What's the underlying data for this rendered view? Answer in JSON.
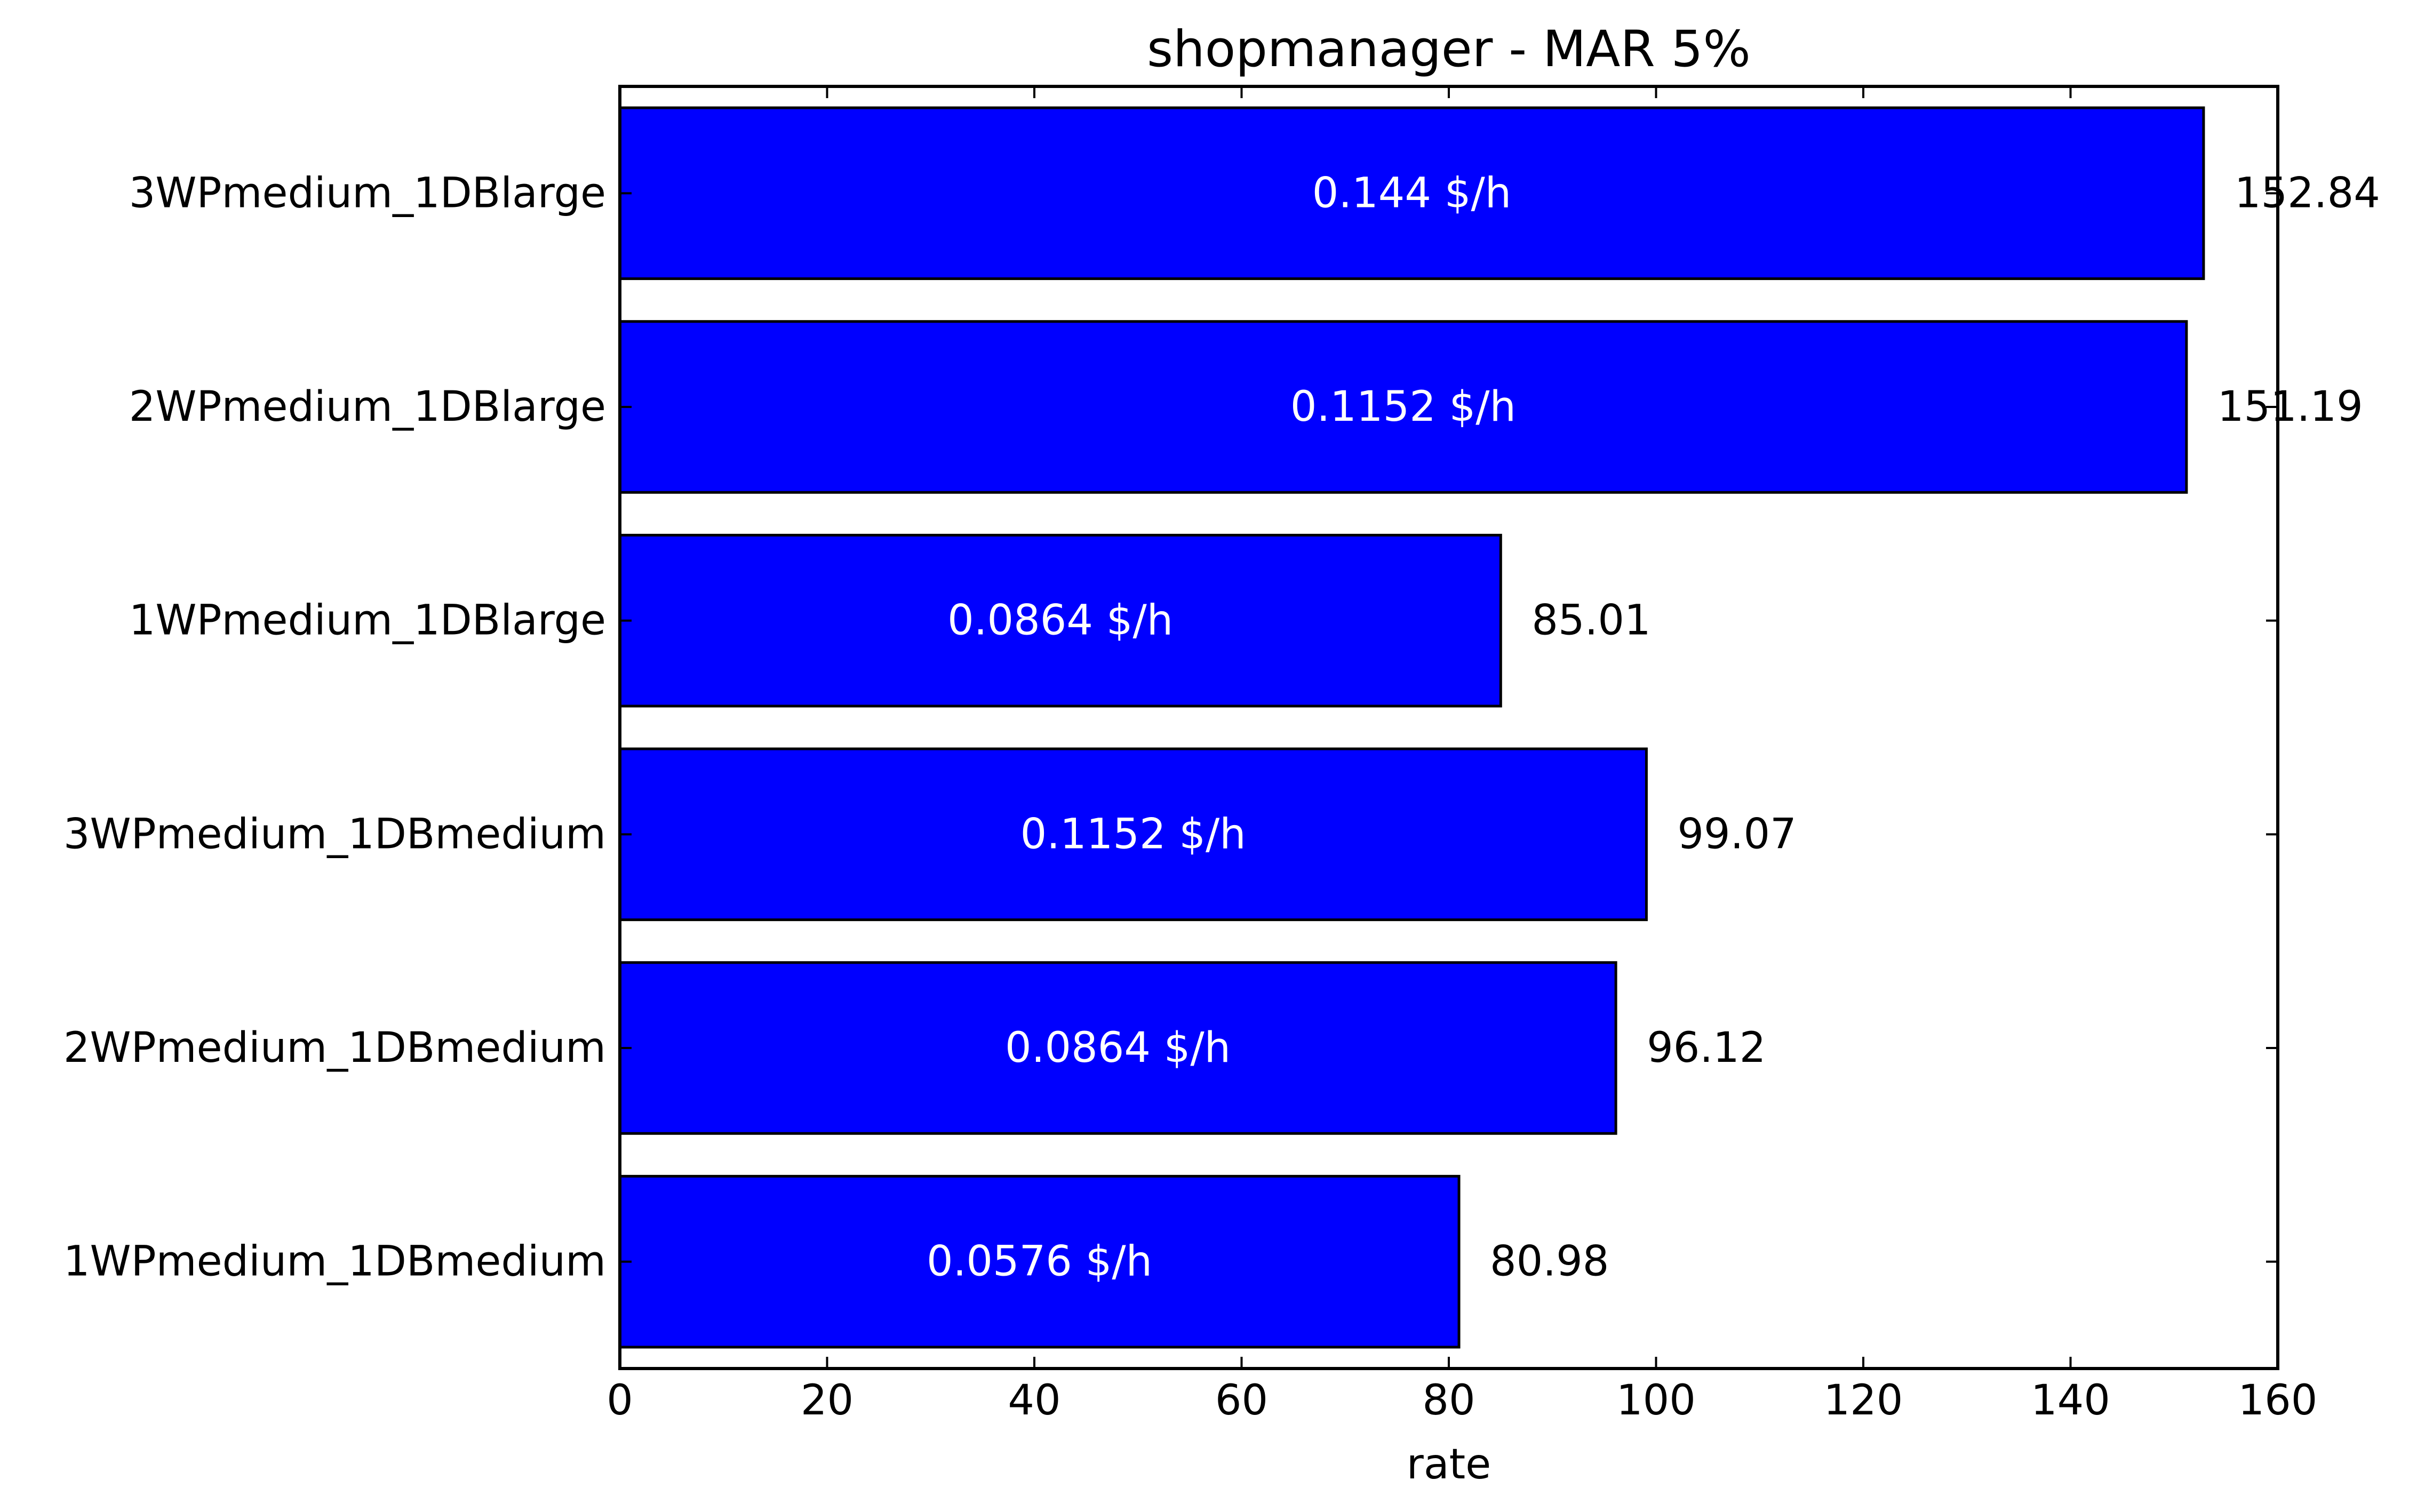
{
  "chart_data": {
    "type": "bar",
    "orientation": "horizontal",
    "title": "shopmanager  - MAR 5%",
    "xlabel": "rate",
    "ylabel": "",
    "xlim": [
      0,
      160
    ],
    "x_ticks": [
      "0",
      "20",
      "40",
      "60",
      "80",
      "100",
      "120",
      "140",
      "160"
    ],
    "x_tick_values": [
      0,
      20,
      40,
      60,
      80,
      100,
      120,
      140,
      160
    ],
    "categories": [
      "3WPmedium_1DBlarge",
      "2WPmedium_1DBlarge",
      "1WPmedium_1DBlarge",
      "3WPmedium_1DBmedium",
      "2WPmedium_1DBmedium",
      "1WPmedium_1DBmedium"
    ],
    "values": [
      152.84,
      151.19,
      85.01,
      99.07,
      96.12,
      80.98
    ],
    "value_labels": [
      "152.84",
      "151.19",
      "85.01",
      "99.07",
      "96.12",
      "80.98"
    ],
    "cost_labels": [
      "0.144 $/h",
      "0.1152 $/h",
      "0.0864 $/h",
      "0.1152 $/h",
      "0.0864 $/h",
      "0.0576 $/h"
    ],
    "bar_color": "#0000ff",
    "edge_color": "#000000",
    "cost_label_color": "#ffffff",
    "grid": false
  }
}
